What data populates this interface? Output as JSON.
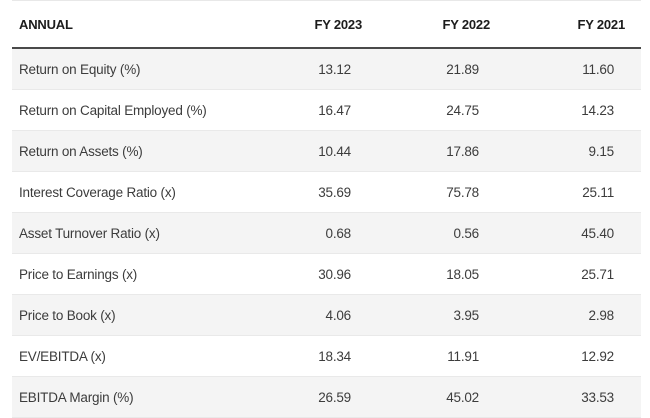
{
  "table": {
    "title_column": "ANNUAL",
    "columns": [
      "FY 2023",
      "FY 2022",
      "FY 2021"
    ],
    "rows": [
      {
        "label": "Return on Equity (%)",
        "values": [
          "13.12",
          "21.89",
          "11.60"
        ]
      },
      {
        "label": "Return on Capital Employed (%)",
        "values": [
          "16.47",
          "24.75",
          "14.23"
        ]
      },
      {
        "label": "Return on Assets (%)",
        "values": [
          "10.44",
          "17.86",
          "9.15"
        ]
      },
      {
        "label": "Interest Coverage Ratio (x)",
        "values": [
          "35.69",
          "75.78",
          "25.11"
        ]
      },
      {
        "label": "Asset Turnover Ratio (x)",
        "values": [
          "0.68",
          "0.56",
          "45.40"
        ]
      },
      {
        "label": "Price to Earnings (x)",
        "values": [
          "30.96",
          "18.05",
          "25.71"
        ]
      },
      {
        "label": "Price to Book (x)",
        "values": [
          "4.06",
          "3.95",
          "2.98"
        ]
      },
      {
        "label": "EV/EBITDA (x)",
        "values": [
          "18.34",
          "11.91",
          "12.92"
        ]
      },
      {
        "label": "EBITDA Margin (%)",
        "values": [
          "26.59",
          "45.02",
          "33.53"
        ]
      }
    ]
  },
  "colors": {
    "row_stripe": "#f4f4f4",
    "row_border": "#e9e9e9",
    "header_border": "#4a4a4a",
    "text": "#3c3c3c",
    "header_text": "#1c1c1c",
    "background": "#ffffff"
  },
  "chart_data": {
    "type": "table",
    "title": "ANNUAL",
    "columns": [
      "ANNUAL",
      "FY 2023",
      "FY 2022",
      "FY 2021"
    ],
    "categories": [
      "Return on Equity (%)",
      "Return on Capital Employed (%)",
      "Return on Assets (%)",
      "Interest Coverage Ratio (x)",
      "Asset Turnover Ratio (x)",
      "Price to Earnings (x)",
      "Price to Book (x)",
      "EV/EBITDA (x)",
      "EBITDA Margin (%)"
    ],
    "series": [
      {
        "name": "FY 2023",
        "values": [
          13.12,
          16.47,
          10.44,
          35.69,
          0.68,
          30.96,
          4.06,
          18.34,
          26.59
        ]
      },
      {
        "name": "FY 2022",
        "values": [
          21.89,
          24.75,
          17.86,
          75.78,
          0.56,
          18.05,
          3.95,
          11.91,
          45.02
        ]
      },
      {
        "name": "FY 2021",
        "values": [
          11.6,
          14.23,
          9.15,
          25.11,
          45.4,
          25.71,
          2.98,
          12.92,
          33.53
        ]
      }
    ],
    "layout_hints": {
      "striped_rows": true,
      "numeric_alignment": "right",
      "header_rule": "2px dark under header"
    }
  }
}
